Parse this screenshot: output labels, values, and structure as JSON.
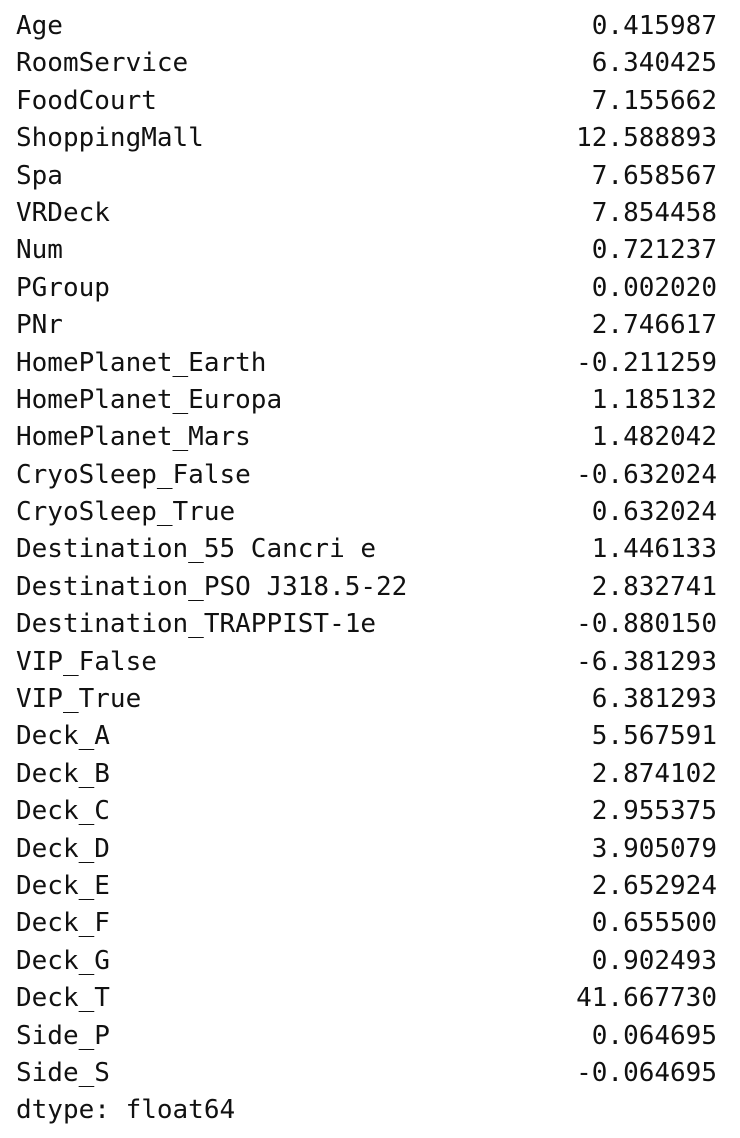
{
  "series": {
    "rows": [
      {
        "label": "Age",
        "value": "0.415987"
      },
      {
        "label": "RoomService",
        "value": "6.340425"
      },
      {
        "label": "FoodCourt",
        "value": "7.155662"
      },
      {
        "label": "ShoppingMall",
        "value": "12.588893"
      },
      {
        "label": "Spa",
        "value": "7.658567"
      },
      {
        "label": "VRDeck",
        "value": "7.854458"
      },
      {
        "label": "Num",
        "value": "0.721237"
      },
      {
        "label": "PGroup",
        "value": "0.002020"
      },
      {
        "label": "PNr",
        "value": "2.746617"
      },
      {
        "label": "HomePlanet_Earth",
        "value": "-0.211259"
      },
      {
        "label": "HomePlanet_Europa",
        "value": "1.185132"
      },
      {
        "label": "HomePlanet_Mars",
        "value": "1.482042"
      },
      {
        "label": "CryoSleep_False",
        "value": "-0.632024"
      },
      {
        "label": "CryoSleep_True",
        "value": "0.632024"
      },
      {
        "label": "Destination_55 Cancri e",
        "value": "1.446133"
      },
      {
        "label": "Destination_PSO J318.5-22",
        "value": "2.832741"
      },
      {
        "label": "Destination_TRAPPIST-1e",
        "value": "-0.880150"
      },
      {
        "label": "VIP_False",
        "value": "-6.381293"
      },
      {
        "label": "VIP_True",
        "value": "6.381293"
      },
      {
        "label": "Deck_A",
        "value": "5.567591"
      },
      {
        "label": "Deck_B",
        "value": "2.874102"
      },
      {
        "label": "Deck_C",
        "value": "2.955375"
      },
      {
        "label": "Deck_D",
        "value": "3.905079"
      },
      {
        "label": "Deck_E",
        "value": "2.652924"
      },
      {
        "label": "Deck_F",
        "value": "0.655500"
      },
      {
        "label": "Deck_G",
        "value": "0.902493"
      },
      {
        "label": "Deck_T",
        "value": "41.667730"
      },
      {
        "label": "Side_P",
        "value": "0.064695"
      },
      {
        "label": "Side_S",
        "value": "-0.064695"
      }
    ],
    "dtype": "dtype: float64"
  }
}
